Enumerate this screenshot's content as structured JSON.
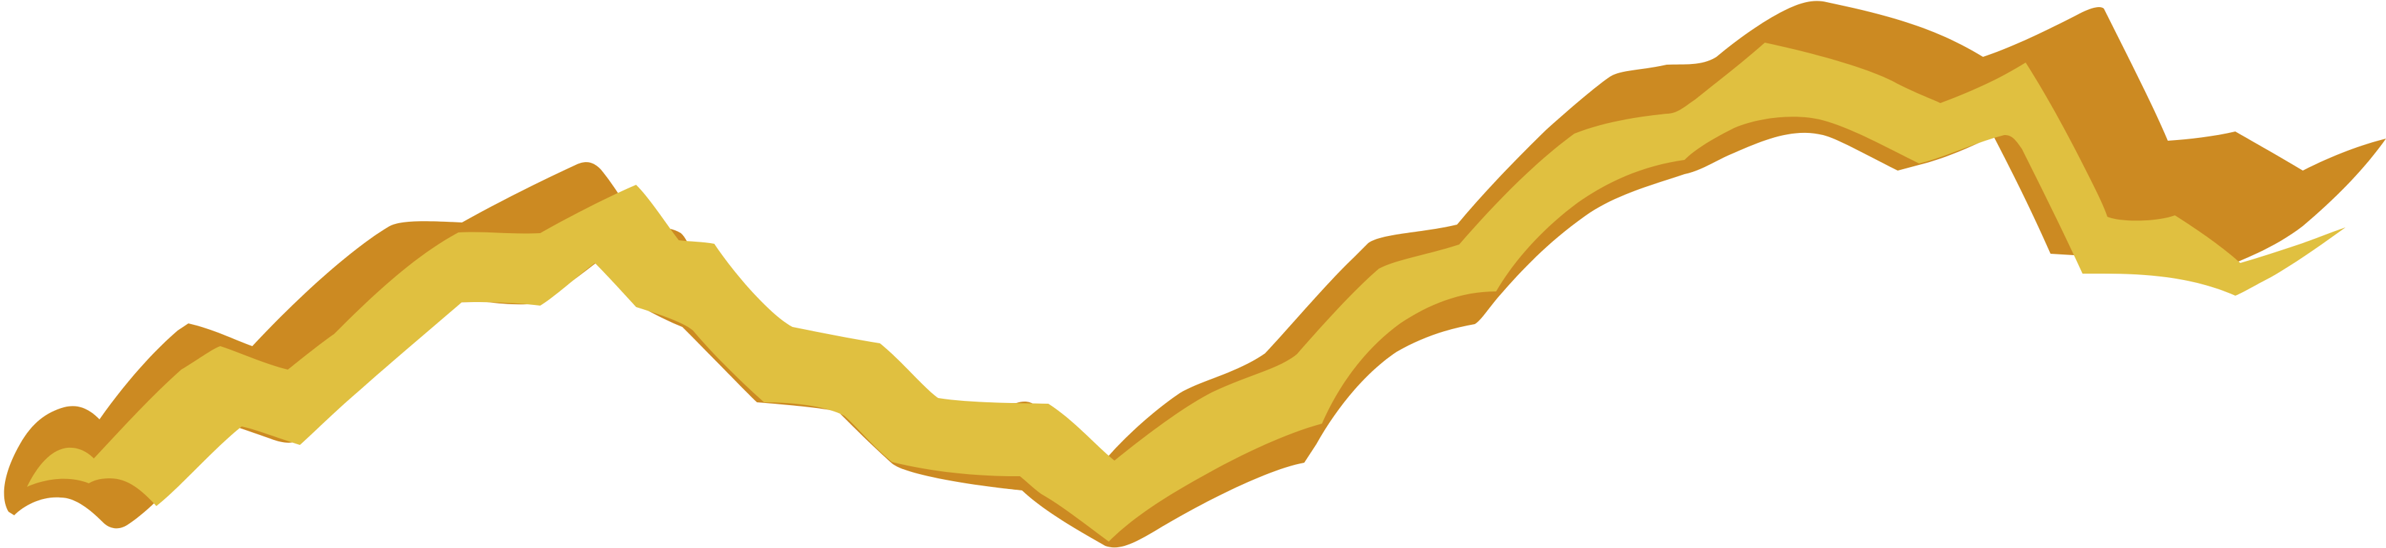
{
  "artwork": {
    "name": "zigzag-ribbon",
    "fill_color": "#E0C040",
    "outline_color": "#CC8A22",
    "background_color": "#FFFFFF"
  }
}
